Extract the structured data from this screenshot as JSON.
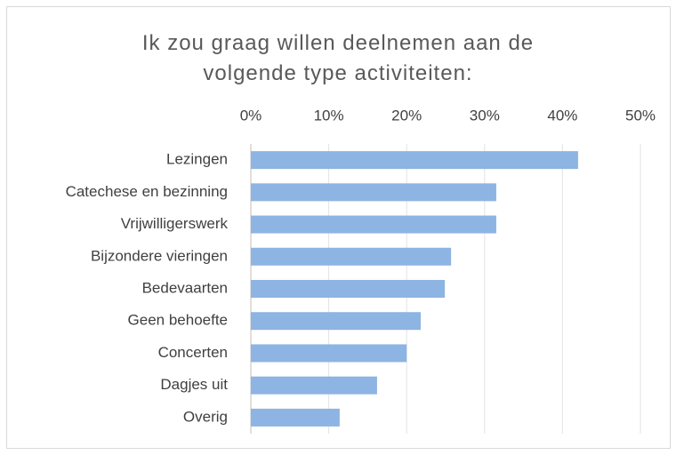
{
  "chart_data": {
    "type": "bar",
    "orientation": "horizontal",
    "title": "Ik zou graag willen deelnemen aan de volgende type activiteiten:",
    "categories": [
      "Lezingen",
      "Catechese en bezinning",
      "Vrijwilligerswerk",
      "Bijzondere vieringen",
      "Bedevaarten",
      "Geen behoefte",
      "Concerten",
      "Dagjes uit",
      "Overig"
    ],
    "values": [
      42,
      31.5,
      31.5,
      25.7,
      24.9,
      21.8,
      20,
      16.2,
      11.4
    ],
    "color": "#8db4e2",
    "xlim": [
      0,
      50
    ],
    "xticks": [
      {
        "value": 0,
        "label": "0%"
      },
      {
        "value": 10,
        "label": "10%"
      },
      {
        "value": 20,
        "label": "20%"
      },
      {
        "value": 30,
        "label": "30%"
      },
      {
        "value": 40,
        "label": "40%"
      },
      {
        "value": 50,
        "label": "50%"
      }
    ],
    "grid": true
  }
}
